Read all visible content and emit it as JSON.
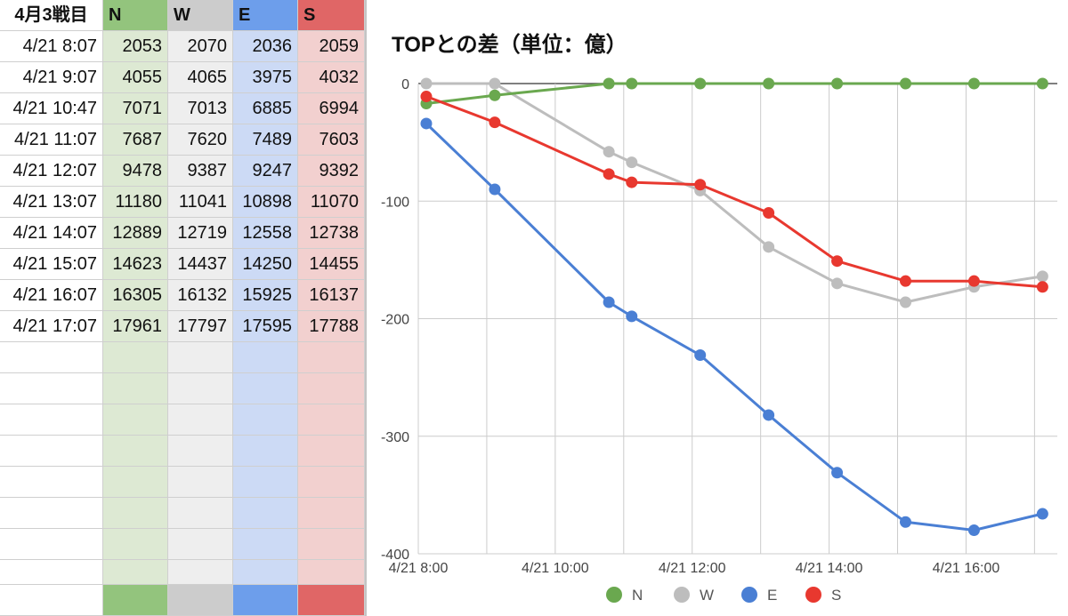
{
  "sheet": {
    "header": [
      "4月3戦目",
      "N",
      "W",
      "E",
      "S"
    ],
    "rows": [
      [
        "4/21 8:07",
        "2053",
        "2070",
        "2036",
        "2059"
      ],
      [
        "4/21 9:07",
        "4055",
        "4065",
        "3975",
        "4032"
      ],
      [
        "4/21 10:47",
        "7071",
        "7013",
        "6885",
        "6994"
      ],
      [
        "4/21 11:07",
        "7687",
        "7620",
        "7489",
        "7603"
      ],
      [
        "4/21 12:07",
        "9478",
        "9387",
        "9247",
        "9392"
      ],
      [
        "4/21 13:07",
        "11180",
        "11041",
        "10898",
        "11070"
      ],
      [
        "4/21 14:07",
        "12889",
        "12719",
        "12558",
        "12738"
      ],
      [
        "4/21 15:07",
        "14623",
        "14437",
        "14250",
        "14455"
      ],
      [
        "4/21 16:07",
        "16305",
        "16132",
        "15925",
        "16137"
      ],
      [
        "4/21 17:07",
        "17961",
        "17797",
        "17595",
        "17788"
      ]
    ],
    "column_colors": {
      "N": "#93c47d",
      "W": "#cccccc",
      "E": "#6d9eeb",
      "S": "#e06666"
    }
  },
  "chart_data": {
    "type": "line",
    "title": "TOPとの差（単位：億）",
    "xlabel": "",
    "ylabel": "",
    "x": [
      "4/21 8:07",
      "4/21 9:07",
      "4/21 10:47",
      "4/21 11:07",
      "4/21 12:07",
      "4/21 13:07",
      "4/21 14:07",
      "4/21 15:07",
      "4/21 16:07",
      "4/21 17:07"
    ],
    "x_hours": [
      8.1167,
      9.1167,
      10.7833,
      11.1167,
      12.1167,
      13.1167,
      14.1167,
      15.1167,
      16.1167,
      17.1167
    ],
    "xlim_hours": [
      8,
      17.333
    ],
    "xticks": [
      {
        "hour": 8,
        "label": "4/21 8:00"
      },
      {
        "hour": 10,
        "label": "4/21 10:00"
      },
      {
        "hour": 12,
        "label": "4/21 12:00"
      },
      {
        "hour": 14,
        "label": "4/21 14:00"
      },
      {
        "hour": 16,
        "label": "4/21 16:00"
      }
    ],
    "x_minor_grid_hours": [
      9,
      11,
      13,
      15,
      17
    ],
    "ylim": [
      -400,
      0
    ],
    "yticks": [
      0,
      -100,
      -200,
      -300,
      -400
    ],
    "grid": true,
    "legend": "bottom",
    "series": [
      {
        "name": "N",
        "color": "#6aa84f",
        "values": [
          -17,
          -10,
          0,
          0,
          0,
          0,
          0,
          0,
          0,
          0
        ]
      },
      {
        "name": "W",
        "color": "#bdbdbd",
        "values": [
          0,
          0,
          -58,
          -67,
          -91,
          -139,
          -170,
          -186,
          -173,
          -164
        ]
      },
      {
        "name": "E",
        "color": "#4a7fd4",
        "values": [
          -34,
          -90,
          -186,
          -198,
          -231,
          -282,
          -331,
          -373,
          -380,
          -366
        ]
      },
      {
        "name": "S",
        "color": "#e8382f",
        "values": [
          -11,
          -33,
          -77,
          -84,
          -86,
          -110,
          -151,
          -168,
          -168,
          -173
        ]
      }
    ]
  }
}
